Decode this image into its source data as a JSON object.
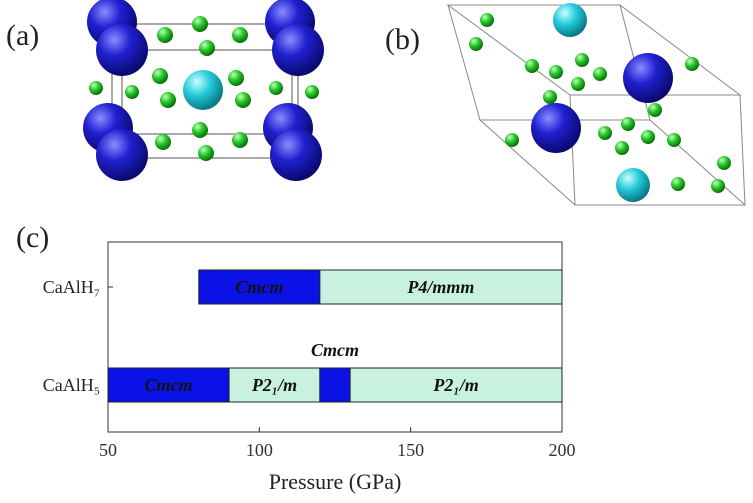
{
  "panel_labels": [
    "(a)",
    "(b)",
    "(c)"
  ],
  "chart_data": {
    "type": "range-bar",
    "xlabel": "Pressure (GPa)",
    "categories": [
      "CaAlH₇",
      "CaAlH₅"
    ],
    "segments": [
      [
        {
          "label": "Cmcm",
          "start": 80,
          "end": 120,
          "color": "#0a12e6"
        },
        {
          "label": "P4/mmm",
          "start": 120,
          "end": 200,
          "color": "#c9f1df"
        }
      ],
      [
        {
          "label": "Cmcm",
          "start": 50,
          "end": 90,
          "color": "#0a12e6"
        },
        {
          "label": "P2₁/m",
          "start": 90,
          "end": 120,
          "color": "#c9f1df"
        },
        {
          "label": "Cmcm",
          "start": 120,
          "end": 130,
          "color": "#0a12e6"
        },
        {
          "label": "P2₁/m",
          "start": 130,
          "end": 200,
          "color": "#c9f1df"
        }
      ]
    ],
    "xlim": [
      50,
      200
    ],
    "xticks": [
      50,
      100,
      150,
      200
    ]
  }
}
